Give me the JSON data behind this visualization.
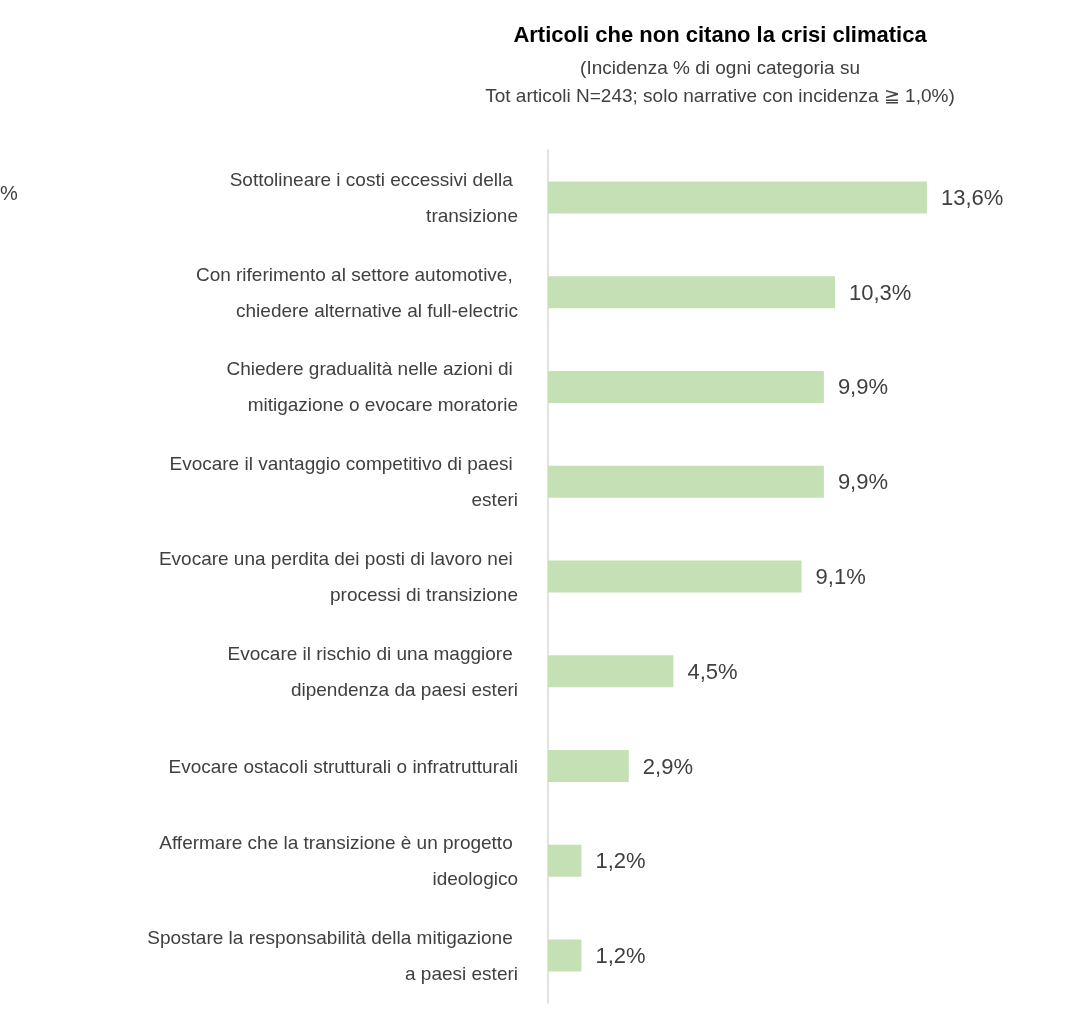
{
  "chart_data": {
    "type": "bar",
    "orientation": "horizontal",
    "title": "Articoli che non citano la crisi climatica",
    "subtitle": "(Incidenza % di ogni categoria su\nTot articoli N=243; solo narrative con incidenza ≧ 1,0%)",
    "categories": [
      "Sottolineare i costi eccessivi della transizione",
      "Con riferimento al settore automotive, chiedere alternative al full-electric",
      "Chiedere gradualità nelle azioni di mitigazione o evocare moratorie",
      "Evocare il vantaggio competitivo di paesi esteri",
      "Evocare una perdita dei posti di lavoro nei processi di transizione",
      "Evocare il rischio di una maggiore dipendenza da paesi esteri",
      "Evocare ostacoli strutturali o infratrutturali",
      "Affermare che la transizione è un progetto ideologico",
      "Spostare la responsabilità della mitigazione a paesi esteri"
    ],
    "values": [
      13.6,
      10.3,
      9.9,
      9.9,
      9.1,
      4.5,
      2.9,
      1.2,
      1.2
    ],
    "value_labels": [
      "13,6%",
      "10,3%",
      "9,9%",
      "9,9%",
      "9,1%",
      "4,5%",
      "2,9%",
      "1,2%",
      "1,2%"
    ],
    "color": "#c5e0b4",
    "grid": false,
    "tick_labels": "y",
    "annotations": [
      "%"
    ]
  }
}
